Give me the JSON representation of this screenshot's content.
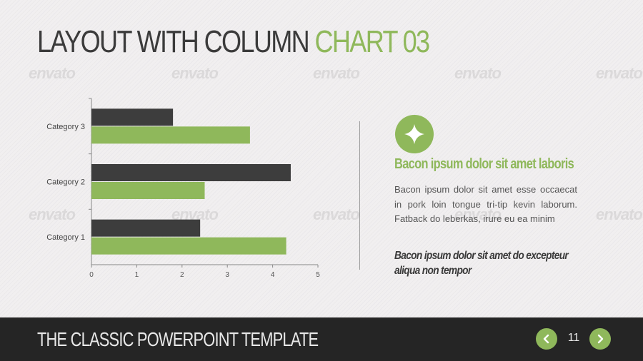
{
  "slide": {
    "title_main": "LAYOUT WITH COLUMN ",
    "title_accent": "CHART 03"
  },
  "watermark_text": "envato",
  "chart_data": {
    "type": "bar",
    "orientation": "horizontal",
    "categories": [
      "Category 1",
      "Category 2",
      "Category 3"
    ],
    "series": [
      {
        "color": "#3d3d3d",
        "values": [
          2.4,
          4.4,
          1.8
        ]
      },
      {
        "color": "#8fb85b",
        "values": [
          4.3,
          2.5,
          3.5
        ]
      }
    ],
    "xlim": [
      0,
      5
    ],
    "xticks": [
      "0",
      "1",
      "2",
      "3",
      "4",
      "5"
    ],
    "grid": false,
    "legend": "none"
  },
  "sidebar": {
    "icon": "sparkle-icon",
    "heading": "Bacon ipsum dolor sit amet laboris",
    "body": "Bacon ipsum dolor sit amet esse occaecat in pork loin tongue tri-tip kevin laborum. Fatback do leberkas, irure eu ea minim",
    "quote_line1": "Bacon ipsum dolor sit amet do excepteur",
    "quote_line2": "aliqua non tempor"
  },
  "footer": {
    "title": "THE CLASSIC POWERPOINT TEMPLATE",
    "page_number": "11",
    "prev_icon": "chevron-left-icon",
    "next_icon": "chevron-right-icon"
  },
  "colors": {
    "accent": "#8fb85b",
    "dark": "#3d3d3d",
    "footer_bg": "#252525"
  }
}
